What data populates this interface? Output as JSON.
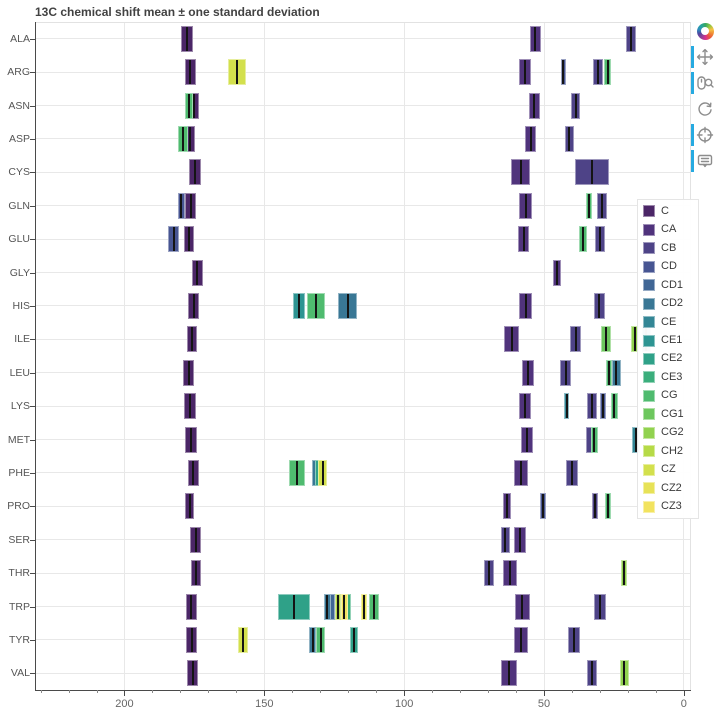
{
  "title": "13C chemical shift mean ± one standard deviation",
  "toolbar": {
    "tools": [
      {
        "name": "bokeh-logo",
        "active": false
      },
      {
        "name": "pan",
        "active": true
      },
      {
        "name": "wheel-zoom",
        "active": true
      },
      {
        "name": "reset",
        "active": false
      },
      {
        "name": "crosshair",
        "active": true
      },
      {
        "name": "hover",
        "active": true
      }
    ]
  },
  "legend": {
    "entries": [
      "C",
      "CA",
      "CB",
      "CD",
      "CD1",
      "CD2",
      "CE",
      "CE1",
      "CE2",
      "CE3",
      "CG",
      "CG1",
      "CG2",
      "CH2",
      "CZ",
      "CZ2",
      "CZ3"
    ]
  },
  "chart_data": {
    "type": "bar",
    "subtype": "horizontal interval (mean ± 1 SD) per residue, colored by atom",
    "title": "13C chemical shift mean ± one standard deviation",
    "xlabel": "",
    "ylabel": "",
    "x_unit": "ppm",
    "x_axis_reversed": true,
    "xlim": [
      232,
      -2.2
    ],
    "x_ticks": [
      200,
      150,
      100,
      50,
      0
    ],
    "x_minor_step": 10,
    "grid": true,
    "legend_position": "right-inside",
    "categories": [
      "ALA",
      "ARG",
      "ASN",
      "ASP",
      "CYS",
      "GLN",
      "GLU",
      "GLY",
      "HIS",
      "ILE",
      "LEU",
      "LYS",
      "MET",
      "PHE",
      "PRO",
      "SER",
      "THR",
      "TRP",
      "TYR",
      "VAL"
    ],
    "atoms": [
      {
        "name": "C",
        "color": "#4b2667"
      },
      {
        "name": "CA",
        "color": "#50337c"
      },
      {
        "name": "CB",
        "color": "#4e4387"
      },
      {
        "name": "CD",
        "color": "#475592"
      },
      {
        "name": "CD1",
        "color": "#406695"
      },
      {
        "name": "CD2",
        "color": "#397795"
      },
      {
        "name": "CE",
        "color": "#338695"
      },
      {
        "name": "CE1",
        "color": "#2d9492"
      },
      {
        "name": "CE2",
        "color": "#2fa188"
      },
      {
        "name": "CE3",
        "color": "#3bae7c"
      },
      {
        "name": "CG",
        "color": "#4fbb6f"
      },
      {
        "name": "CG1",
        "color": "#6dc75e"
      },
      {
        "name": "CG2",
        "color": "#91d24f"
      },
      {
        "name": "CH2",
        "color": "#b6da47"
      },
      {
        "name": "CZ",
        "color": "#d3e04d"
      },
      {
        "name": "CZ2",
        "color": "#e7e257"
      },
      {
        "name": "CZ3",
        "color": "#f2e35f"
      }
    ],
    "rows": [
      {
        "residue": "ALA",
        "shifts": [
          {
            "atom": "C",
            "mean": 177.7,
            "sd": 2.1
          },
          {
            "atom": "CA",
            "mean": 53.1,
            "sd": 2.0
          },
          {
            "atom": "CB",
            "mean": 19.0,
            "sd": 1.8
          }
        ]
      },
      {
        "residue": "ARG",
        "shifts": [
          {
            "atom": "C",
            "mean": 176.4,
            "sd": 2.0
          },
          {
            "atom": "CA",
            "mean": 56.8,
            "sd": 2.3
          },
          {
            "atom": "CB",
            "mean": 30.7,
            "sd": 1.8
          },
          {
            "atom": "CD",
            "mean": 43.2,
            "sd": 0.9
          },
          {
            "atom": "CG",
            "mean": 27.2,
            "sd": 1.2
          },
          {
            "atom": "CZ",
            "mean": 159.8,
            "sd": 3.3
          }
        ]
      },
      {
        "residue": "ASN",
        "shifts": [
          {
            "atom": "C",
            "mean": 175.2,
            "sd": 1.8
          },
          {
            "atom": "CA",
            "mean": 53.5,
            "sd": 1.9
          },
          {
            "atom": "CB",
            "mean": 38.7,
            "sd": 1.7
          },
          {
            "atom": "CG",
            "mean": 176.8,
            "sd": 1.4
          }
        ]
      },
      {
        "residue": "ASP",
        "shifts": [
          {
            "atom": "C",
            "mean": 176.4,
            "sd": 1.7
          },
          {
            "atom": "CA",
            "mean": 54.7,
            "sd": 2.0
          },
          {
            "atom": "CB",
            "mean": 40.9,
            "sd": 1.6
          },
          {
            "atom": "CG",
            "mean": 179.2,
            "sd": 1.8
          }
        ]
      },
      {
        "residue": "CYS",
        "shifts": [
          {
            "atom": "C",
            "mean": 174.9,
            "sd": 2.1
          },
          {
            "atom": "CA",
            "mean": 58.3,
            "sd": 3.4
          },
          {
            "atom": "CB",
            "mean": 32.9,
            "sd": 6.1
          }
        ]
      },
      {
        "residue": "GLN",
        "shifts": [
          {
            "atom": "C",
            "mean": 176.3,
            "sd": 2.0
          },
          {
            "atom": "CA",
            "mean": 56.6,
            "sd": 2.2
          },
          {
            "atom": "CB",
            "mean": 29.2,
            "sd": 1.8
          },
          {
            "atom": "CD",
            "mean": 179.7,
            "sd": 1.3
          },
          {
            "atom": "CG",
            "mean": 33.8,
            "sd": 1.1
          }
        ]
      },
      {
        "residue": "GLU",
        "shifts": [
          {
            "atom": "C",
            "mean": 176.9,
            "sd": 1.9
          },
          {
            "atom": "CA",
            "mean": 57.3,
            "sd": 2.1
          },
          {
            "atom": "CB",
            "mean": 30.0,
            "sd": 1.7
          },
          {
            "atom": "CD",
            "mean": 182.4,
            "sd": 1.9
          },
          {
            "atom": "CG",
            "mean": 36.1,
            "sd": 1.3
          }
        ]
      },
      {
        "residue": "GLY",
        "shifts": [
          {
            "atom": "C",
            "mean": 173.9,
            "sd": 1.9
          },
          {
            "atom": "CA",
            "mean": 45.4,
            "sd": 1.3
          }
        ]
      },
      {
        "residue": "HIS",
        "shifts": [
          {
            "atom": "C",
            "mean": 175.2,
            "sd": 2.0
          },
          {
            "atom": "CA",
            "mean": 56.5,
            "sd": 2.3
          },
          {
            "atom": "CB",
            "mean": 30.2,
            "sd": 2.1
          },
          {
            "atom": "CD2",
            "mean": 120.2,
            "sd": 3.4
          },
          {
            "atom": "CE1",
            "mean": 137.6,
            "sd": 2.3
          },
          {
            "atom": "CG",
            "mean": 131.6,
            "sd": 3.3
          }
        ]
      },
      {
        "residue": "ILE",
        "shifts": [
          {
            "atom": "C",
            "mean": 175.8,
            "sd": 1.9
          },
          {
            "atom": "CA",
            "mean": 61.6,
            "sd": 2.7
          },
          {
            "atom": "CB",
            "mean": 38.6,
            "sd": 2.0
          },
          {
            "atom": "CD1",
            "mean": 13.4,
            "sd": 1.7
          },
          {
            "atom": "CG1",
            "mean": 27.7,
            "sd": 1.8
          },
          {
            "atom": "CG2",
            "mean": 17.5,
            "sd": 1.4
          }
        ]
      },
      {
        "residue": "LEU",
        "shifts": [
          {
            "atom": "C",
            "mean": 177.0,
            "sd": 2.0
          },
          {
            "atom": "CA",
            "mean": 55.6,
            "sd": 2.1
          },
          {
            "atom": "CB",
            "mean": 42.3,
            "sd": 1.9
          },
          {
            "atom": "CD1",
            "mean": 24.7,
            "sd": 1.6
          },
          {
            "atom": "CD2",
            "mean": 24.1,
            "sd": 1.7
          },
          {
            "atom": "CG",
            "mean": 26.8,
            "sd": 1.1
          }
        ]
      },
      {
        "residue": "LYS",
        "shifts": [
          {
            "atom": "C",
            "mean": 176.6,
            "sd": 2.0
          },
          {
            "atom": "CA",
            "mean": 56.9,
            "sd": 2.2
          },
          {
            "atom": "CB",
            "mean": 32.8,
            "sd": 1.8
          },
          {
            "atom": "CD",
            "mean": 29.0,
            "sd": 1.1
          },
          {
            "atom": "CE",
            "mean": 41.9,
            "sd": 0.8
          },
          {
            "atom": "CG",
            "mean": 24.9,
            "sd": 1.2
          }
        ]
      },
      {
        "residue": "MET",
        "shifts": [
          {
            "atom": "C",
            "mean": 176.2,
            "sd": 2.1
          },
          {
            "atom": "CA",
            "mean": 56.1,
            "sd": 2.2
          },
          {
            "atom": "CB",
            "mean": 32.9,
            "sd": 2.2
          },
          {
            "atom": "CE",
            "mean": 17.1,
            "sd": 1.6
          },
          {
            "atom": "CG",
            "mean": 32.0,
            "sd": 1.3
          }
        ]
      },
      {
        "residue": "PHE",
        "shifts": [
          {
            "atom": "C",
            "mean": 175.4,
            "sd": 2.0
          },
          {
            "atom": "CA",
            "mean": 58.1,
            "sd": 2.5
          },
          {
            "atom": "CB",
            "mean": 39.9,
            "sd": 2.1
          },
          {
            "atom": "CD1",
            "mean": 131.5,
            "sd": 1.2
          },
          {
            "atom": "CD2",
            "mean": 131.5,
            "sd": 1.3
          },
          {
            "atom": "CE1",
            "mean": 130.7,
            "sd": 1.3
          },
          {
            "atom": "CE2",
            "mean": 130.6,
            "sd": 1.4
          },
          {
            "atom": "CG",
            "mean": 138.4,
            "sd": 2.8
          },
          {
            "atom": "CZ",
            "mean": 129.2,
            "sd": 1.6
          }
        ]
      },
      {
        "residue": "PRO",
        "shifts": [
          {
            "atom": "C",
            "mean": 176.7,
            "sd": 1.6
          },
          {
            "atom": "CA",
            "mean": 63.3,
            "sd": 1.5
          },
          {
            "atom": "CB",
            "mean": 31.8,
            "sd": 1.2
          },
          {
            "atom": "CD",
            "mean": 50.3,
            "sd": 1.0
          },
          {
            "atom": "CG",
            "mean": 27.2,
            "sd": 1.1
          }
        ]
      },
      {
        "residue": "SER",
        "shifts": [
          {
            "atom": "C",
            "mean": 174.6,
            "sd": 1.8
          },
          {
            "atom": "CA",
            "mean": 58.7,
            "sd": 2.1
          },
          {
            "atom": "CB",
            "mean": 63.8,
            "sd": 1.5
          }
        ]
      },
      {
        "residue": "THR",
        "shifts": [
          {
            "atom": "C",
            "mean": 174.5,
            "sd": 1.8
          },
          {
            "atom": "CA",
            "mean": 62.2,
            "sd": 2.6
          },
          {
            "atom": "CB",
            "mean": 69.6,
            "sd": 1.7
          },
          {
            "atom": "CG2",
            "mean": 21.5,
            "sd": 1.1
          }
        ]
      },
      {
        "residue": "TRP",
        "shifts": [
          {
            "atom": "C",
            "mean": 176.1,
            "sd": 2.0
          },
          {
            "atom": "CA",
            "mean": 57.7,
            "sd": 2.6
          },
          {
            "atom": "CB",
            "mean": 30.0,
            "sd": 2.0
          },
          {
            "atom": "CD1",
            "mean": 126.5,
            "sd": 1.9
          },
          {
            "atom": "CD2",
            "mean": 127.5,
            "sd": 1.3
          },
          {
            "atom": "CE2",
            "mean": 139.4,
            "sd": 5.6
          },
          {
            "atom": "CE3",
            "mean": 120.5,
            "sd": 1.4
          },
          {
            "atom": "CG",
            "mean": 110.7,
            "sd": 1.7
          },
          {
            "atom": "CH2",
            "mean": 123.7,
            "sd": 1.2
          },
          {
            "atom": "CZ2",
            "mean": 114.3,
            "sd": 1.1
          },
          {
            "atom": "CZ3",
            "mean": 121.4,
            "sd": 1.3
          }
        ]
      },
      {
        "residue": "TYR",
        "shifts": [
          {
            "atom": "C",
            "mean": 175.9,
            "sd": 2.0
          },
          {
            "atom": "CA",
            "mean": 58.1,
            "sd": 2.5
          },
          {
            "atom": "CB",
            "mean": 39.3,
            "sd": 2.2
          },
          {
            "atom": "CD1",
            "mean": 132.8,
            "sd": 1.2
          },
          {
            "atom": "CD2",
            "mean": 132.7,
            "sd": 1.3
          },
          {
            "atom": "CE1",
            "mean": 117.9,
            "sd": 1.2
          },
          {
            "atom": "CE2",
            "mean": 117.9,
            "sd": 1.3
          },
          {
            "atom": "CG",
            "mean": 129.8,
            "sd": 1.6
          },
          {
            "atom": "CZ",
            "mean": 157.6,
            "sd": 1.8
          }
        ]
      },
      {
        "residue": "VAL",
        "shifts": [
          {
            "atom": "C",
            "mean": 175.6,
            "sd": 1.9
          },
          {
            "atom": "CA",
            "mean": 62.5,
            "sd": 2.9
          },
          {
            "atom": "CB",
            "mean": 32.7,
            "sd": 1.8
          },
          {
            "atom": "CG1",
            "mean": 21.5,
            "sd": 1.4
          },
          {
            "atom": "CG2",
            "mean": 21.3,
            "sd": 1.6
          }
        ]
      }
    ]
  }
}
